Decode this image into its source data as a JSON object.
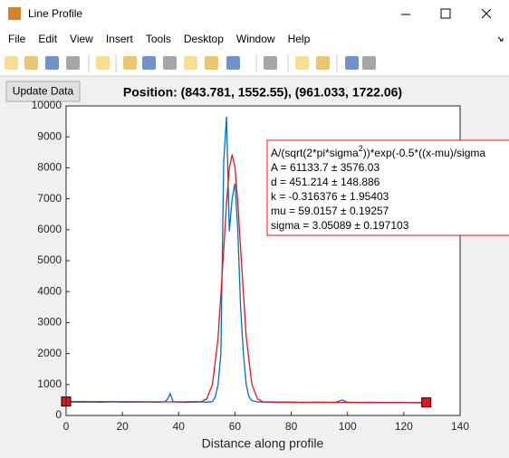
{
  "window": {
    "title": "Line Profile",
    "menu": [
      "File",
      "Edit",
      "View",
      "Insert",
      "Tools",
      "Desktop",
      "Window",
      "Help"
    ],
    "button": "Update Data"
  },
  "chart_data": {
    "type": "line",
    "title": "Position: (843.781, 1552.55), (961.033, 1722.06)",
    "x_label": "Distance along profile",
    "xlim": [
      0,
      140
    ],
    "xticks": [
      0,
      20,
      40,
      60,
      80,
      100,
      120,
      140
    ],
    "ylim": [
      0,
      10000
    ],
    "yticks": [
      0,
      1000,
      2000,
      3000,
      4000,
      5000,
      6000,
      7000,
      8000,
      9000,
      10000
    ],
    "series": [
      {
        "color": "#0072bd",
        "x": [
          0,
          4,
          8,
          12,
          16,
          20,
          24,
          28,
          32,
          35,
          36,
          37,
          38,
          40,
          44,
          48,
          50,
          52,
          53,
          54,
          55,
          56,
          57,
          58,
          59,
          60,
          61,
          62,
          63,
          64,
          65,
          66,
          68,
          72,
          76,
          80,
          84,
          88,
          92,
          96,
          98,
          100,
          104,
          108,
          112,
          116,
          120,
          124,
          128
        ],
        "values": [
          440,
          430,
          435,
          425,
          440,
          430,
          428,
          432,
          430,
          440,
          520,
          700,
          450,
          430,
          425,
          435,
          430,
          450,
          600,
          1000,
          2000,
          8200,
          9650,
          5950,
          7000,
          7500,
          6000,
          3500,
          2000,
          1000,
          600,
          480,
          440,
          430,
          425,
          430,
          420,
          428,
          425,
          430,
          500,
          425,
          420,
          425,
          418,
          420,
          415,
          418,
          420
        ]
      },
      {
        "color": "#e8141c",
        "x": [
          0,
          40,
          48,
          50,
          52,
          54,
          56,
          57,
          58,
          59,
          60,
          61,
          62,
          64,
          66,
          68,
          70,
          80,
          100,
          128
        ],
        "values": [
          451,
          439,
          448,
          537,
          1003,
          2504,
          5341,
          6858,
          7996,
          8427,
          8021,
          6903,
          5388,
          2534,
          1011,
          535,
          441,
          426,
          420,
          411
        ]
      }
    ],
    "endpoints": {
      "color": "#e8141c",
      "x": [
        0,
        128
      ],
      "values": [
        450,
        420
      ]
    },
    "fit_box": {
      "line1": [
        "A/(sqrt(2*pi*sigma",
        "2",
        "))*exp(-0.5*((x-mu)/sigma"
      ],
      "lines": [
        "A = 61133.7 ± 3576.03",
        "d = 451.214 ± 148.886",
        "k = -0.316376 ± 1.95403",
        "mu = 59.0157 ± 0.19257",
        "sigma = 3.05089 ± 0.197103"
      ],
      "color": "#e8141c"
    }
  }
}
